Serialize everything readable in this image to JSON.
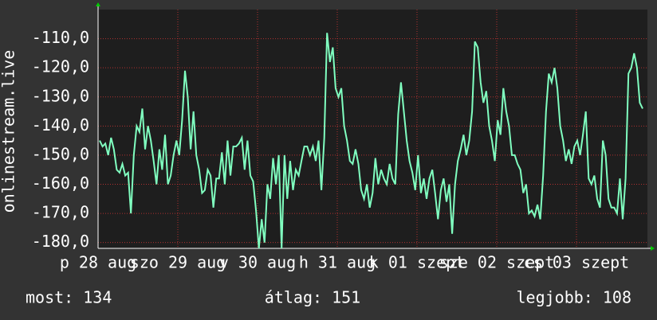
{
  "chart_data": {
    "type": "line",
    "y_label": "onlinestream.live",
    "ylim": [
      -182,
      -100
    ],
    "yticks": [
      {
        "value": -110,
        "label": "-110,0"
      },
      {
        "value": -120,
        "label": "-120,0"
      },
      {
        "value": -130,
        "label": "-130,0"
      },
      {
        "value": -140,
        "label": "-140,0"
      },
      {
        "value": -150,
        "label": "-150,0"
      },
      {
        "value": -160,
        "label": "-160,0"
      },
      {
        "value": -170,
        "label": "-170,0"
      },
      {
        "value": -180,
        "label": "-180,0"
      }
    ],
    "x_labels": [
      "p 28 aug",
      "szo 29 aug",
      "v 30 aug",
      "h 31 aug",
      "k 01 szept",
      "sze 02 szept",
      "cs 03 szept"
    ],
    "grid": true,
    "color": "#80ffc0",
    "values": [
      -145,
      -147,
      -146,
      -150,
      -144,
      -148,
      -155,
      -156,
      -153,
      -157,
      -156,
      -170,
      -150,
      -140,
      -142,
      -134,
      -148,
      -140,
      -145,
      -152,
      -160,
      -148,
      -155,
      -143,
      -160,
      -157,
      -150,
      -145,
      -150,
      -138,
      -121,
      -130,
      -148,
      -135,
      -150,
      -155,
      -163,
      -162,
      -155,
      -157,
      -168,
      -158,
      -158,
      -149,
      -160,
      -145,
      -157,
      -147,
      -147,
      -146,
      -144,
      -155,
      -145,
      -157,
      -159,
      -169,
      -182,
      -172,
      -180,
      -160,
      -165,
      -151,
      -160,
      -150,
      -182,
      -150,
      -165,
      -152,
      -162,
      -155,
      -157,
      -152,
      -147,
      -147,
      -150,
      -147,
      -152,
      -145,
      -162,
      -144,
      -108,
      -118,
      -113,
      -127,
      -130,
      -127,
      -140,
      -145,
      -152,
      -153,
      -148,
      -153,
      -162,
      -165,
      -160,
      -168,
      -163,
      -151,
      -160,
      -155,
      -158,
      -160,
      -153,
      -158,
      -160,
      -136,
      -125,
      -135,
      -145,
      -152,
      -156,
      -162,
      -150,
      -163,
      -158,
      -165,
      -158,
      -155,
      -163,
      -172,
      -162,
      -158,
      -166,
      -160,
      -177,
      -160,
      -152,
      -148,
      -143,
      -150,
      -145,
      -135,
      -111,
      -113,
      -125,
      -132,
      -128,
      -140,
      -145,
      -152,
      -138,
      -143,
      -127,
      -135,
      -140,
      -150,
      -150,
      -153,
      -155,
      -163,
      -160,
      -170,
      -169,
      -171,
      -167,
      -172,
      -157,
      -135,
      -122,
      -125,
      -120,
      -127,
      -140,
      -145,
      -152,
      -148,
      -153,
      -147,
      -145,
      -150,
      -143,
      -135,
      -158,
      -160,
      -157,
      -165,
      -168,
      -145,
      -150,
      -165,
      -168,
      -168,
      -170,
      -158,
      -172,
      -158,
      -122,
      -120,
      -115,
      -120,
      -132,
      -134
    ],
    "footer": [
      "most: 134",
      "átlag: 151",
      "legjobb: 108"
    ]
  }
}
